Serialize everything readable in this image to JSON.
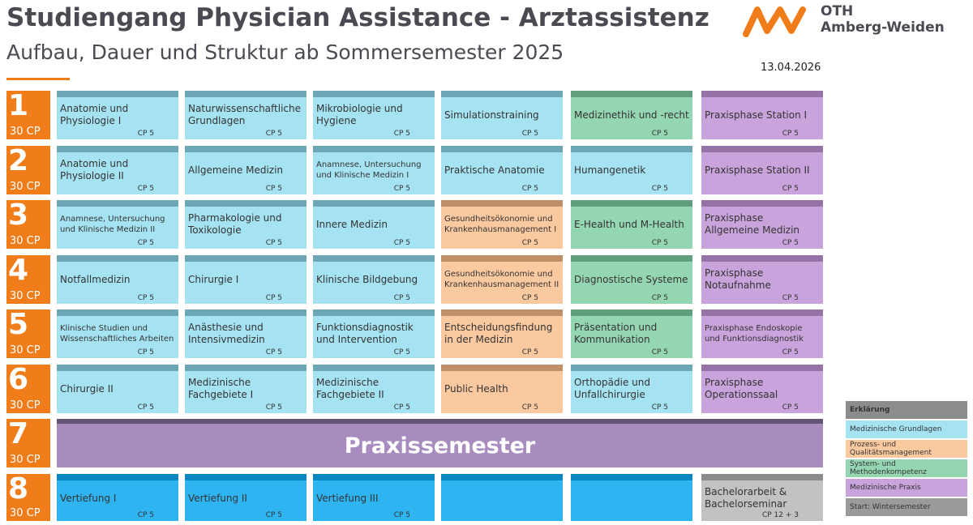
{
  "header": {
    "title": "Studiengang Physician Assistance - Arztassistenz",
    "subtitle": "Aufbau, Dauer und Struktur ab Sommersemester 2025",
    "date": "13.04.2026"
  },
  "logo": {
    "line1": "OTH",
    "line2": "Amberg-Weiden"
  },
  "semesters": [
    {
      "number": "1",
      "cp": "30 CP",
      "modules": [
        {
          "name": "Anatomie und Physiologie I",
          "cp": "CP 5",
          "color": "#a6e3f2"
        },
        {
          "name": "Naturwissenschaftliche Grundlagen",
          "cp": "CP 5",
          "color": "#a6e3f2"
        },
        {
          "name": "Mikrobiologie und Hygiene",
          "cp": "CP 5",
          "color": "#a6e3f2"
        },
        {
          "name": "Simulationstraining",
          "cp": "CP 5",
          "color": "#a6e3f2"
        },
        {
          "name": "Medizinethik und -recht",
          "cp": "CP 5",
          "color": "#95d6b2"
        },
        {
          "name": "Praxisphase Station I",
          "cp": "CP 5",
          "color": "#c9a3db"
        }
      ]
    },
    {
      "number": "2",
      "cp": "30 CP",
      "modules": [
        {
          "name": "Anatomie und Physiologie II",
          "cp": "CP 5",
          "color": "#a6e3f2"
        },
        {
          "name": "Allgemeine Medizin",
          "cp": "CP 5",
          "color": "#a6e3f2"
        },
        {
          "name": "Anamnese, Untersuchung und Klinische Medizin I",
          "cp": "CP 5",
          "color": "#a6e3f2"
        },
        {
          "name": "Praktische Anatomie",
          "cp": "CP 5",
          "color": "#a6e3f2"
        },
        {
          "name": "Humangenetik",
          "cp": "CP 5",
          "color": "#a6e3f2"
        },
        {
          "name": "Praxisphase Station II",
          "cp": "CP 5",
          "color": "#c9a3db"
        }
      ]
    },
    {
      "number": "3",
      "cp": "30 CP",
      "modules": [
        {
          "name": "Anamnese, Untersuchung und Klinische Medizin II",
          "cp": "CP 5",
          "color": "#a6e3f2"
        },
        {
          "name": "Pharmakologie und Toxikologie",
          "cp": "CP 5",
          "color": "#a6e3f2"
        },
        {
          "name": "Innere Medizin",
          "cp": "CP 5",
          "color": "#a6e3f2"
        },
        {
          "name": "Gesundheitsökonomie und Krankenhausmanagement I",
          "cp": "CP 5",
          "color": "#fbc9a0"
        },
        {
          "name": "E-Health und M-Health",
          "cp": "CP 5",
          "color": "#95d6b2"
        },
        {
          "name": "Praxisphase Allgemeine Medizin",
          "cp": "CP 5",
          "color": "#c9a3db"
        }
      ]
    },
    {
      "number": "4",
      "cp": "30 CP",
      "modules": [
        {
          "name": "Notfallmedizin",
          "cp": "CP 5",
          "color": "#a6e3f2"
        },
        {
          "name": "Chirurgie I",
          "cp": "CP 5",
          "color": "#a6e3f2"
        },
        {
          "name": "Klinische Bildgebung",
          "cp": "CP 5",
          "color": "#a6e3f2"
        },
        {
          "name": "Gesundheitsökonomie und Krankenhausmanagement II",
          "cp": "CP 5",
          "color": "#fbc9a0"
        },
        {
          "name": "Diagnostische Systeme",
          "cp": "CP 5",
          "color": "#95d6b2"
        },
        {
          "name": "Praxisphase Notaufnahme",
          "cp": "CP 5",
          "color": "#c9a3db"
        }
      ]
    },
    {
      "number": "5",
      "cp": "30 CP",
      "modules": [
        {
          "name": "Klinische Studien und Wissenschaftliches Arbeiten",
          "cp": "CP 5",
          "color": "#a6e3f2"
        },
        {
          "name": "Anästhesie und Intensivmedizin",
          "cp": "CP 5",
          "color": "#a6e3f2"
        },
        {
          "name": "Funktionsdiagnostik und Intervention",
          "cp": "CP 5",
          "color": "#a6e3f2"
        },
        {
          "name": "Entscheidungsfindung in der Medizin",
          "cp": "CP 5",
          "color": "#fbc9a0"
        },
        {
          "name": "Präsentation und Kommunikation",
          "cp": "CP 5",
          "color": "#95d6b2"
        },
        {
          "name": "Praxisphase Endoskopie und Funktionsdiagnostik",
          "cp": "CP 5",
          "color": "#c9a3db"
        }
      ]
    },
    {
      "number": "6",
      "cp": "30 CP",
      "modules": [
        {
          "name": "Chirurgie II",
          "cp": "CP 5",
          "color": "#a6e3f2"
        },
        {
          "name": "Medizinische Fachgebiete I",
          "cp": "CP 5",
          "color": "#a6e3f2"
        },
        {
          "name": "Medizinische Fachgebiete II",
          "cp": "CP 5",
          "color": "#a6e3f2"
        },
        {
          "name": "Public Health",
          "cp": "CP 5",
          "color": "#fbc9a0"
        },
        {
          "name": "Orthopädie und Unfallchirurgie",
          "cp": "CP 5",
          "color": "#a6e3f2"
        },
        {
          "name": "Praxisphase Operationssaal",
          "cp": "CP 5",
          "color": "#c9a3db"
        }
      ]
    },
    {
      "number": "7",
      "cp": "30 CP",
      "banner": "Praxissemester",
      "color": "#a98cbf"
    },
    {
      "number": "8",
      "cp": "30 CP",
      "modules": [
        {
          "name": "Vertiefung I",
          "cp": "CP 5",
          "color": "#2fb4f2"
        },
        {
          "name": "Vertiefung II",
          "cp": "CP 5",
          "color": "#2fb4f2"
        },
        {
          "name": "Vertiefung III",
          "cp": "CP 5",
          "color": "#2fb4f2"
        },
        {
          "color": "#2fb4f2"
        },
        {
          "color": "#2fb4f2"
        },
        {
          "name": "Bachelorarbeit & Bachelorseminar",
          "cp": "CP 12 + 3",
          "color": "#c2c2c2"
        }
      ]
    }
  ],
  "legend": {
    "title": "Erklärung",
    "items": [
      {
        "label": "Medizinische Grundlagen",
        "color": "#a6e3f2"
      },
      {
        "label": "Prozess- und Qualitätsmanagement",
        "color": "#fbc9a0"
      },
      {
        "label": "System- und Methodenkompetenz",
        "color": "#95d6b2"
      },
      {
        "label": "Medizinische Praxis",
        "color": "#c9a3db"
      },
      {
        "label": "Start: Wintersemester",
        "color": "#9a9a9a"
      }
    ]
  }
}
